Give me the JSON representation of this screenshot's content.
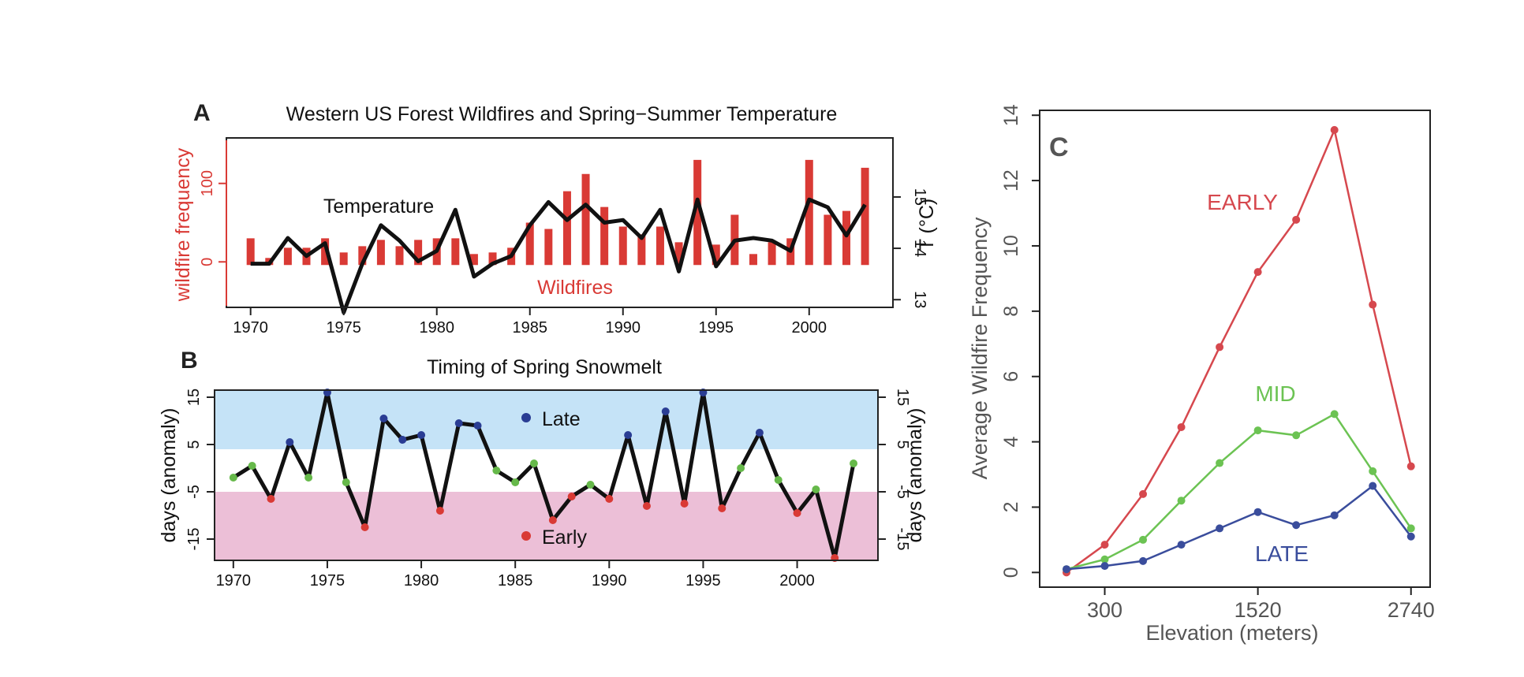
{
  "colors": {
    "red": "#d93a35",
    "black": "#111111",
    "blue": "#2a3d94",
    "green": "#66b94a",
    "late_band": "#c5e3f7",
    "early_band": "#ecbfd7",
    "early_line": "#d6484e",
    "mid_line": "#6cc353",
    "late_line": "#3a4d9c"
  },
  "chart_data": [
    {
      "panel": "A",
      "type": "bar",
      "title": "Western US Forest Wildfires and Spring−Summer Temperature",
      "ylabel": "wildfire frequency",
      "ylabel_right": "T (°C)",
      "ylim": [
        -58,
        158
      ],
      "y_ticks": [
        0,
        100
      ],
      "y_right_ticks": [
        13,
        14,
        15
      ],
      "temperature_ylim": [
        12.85,
        16.15
      ],
      "x_ticks": [
        1970,
        1975,
        1980,
        1985,
        1990,
        1995,
        2000
      ],
      "xlim": [
        1968.7,
        2004.5
      ],
      "annotation_temperature": "Temperature",
      "annotation_wildfires": "Wildfires",
      "years": [
        1970,
        1971,
        1972,
        1973,
        1974,
        1975,
        1976,
        1977,
        1978,
        1979,
        1980,
        1981,
        1982,
        1983,
        1984,
        1985,
        1986,
        1987,
        1988,
        1989,
        1990,
        1991,
        1992,
        1993,
        1994,
        1995,
        1996,
        1997,
        1998,
        1999,
        2000,
        2001,
        2002,
        2003
      ],
      "wildfires": [
        30,
        5,
        18,
        18,
        30,
        12,
        20,
        28,
        20,
        28,
        30,
        30,
        10,
        12,
        18,
        50,
        42,
        90,
        112,
        70,
        45,
        35,
        45,
        25,
        130,
        22,
        60,
        10,
        25,
        30,
        130,
        60,
        65,
        120
      ],
      "temperature": [
        13.7,
        13.7,
        14.2,
        13.85,
        14.1,
        12.75,
        13.7,
        14.45,
        14.15,
        13.75,
        13.95,
        14.75,
        13.45,
        13.7,
        13.85,
        14.45,
        14.9,
        14.55,
        14.85,
        14.5,
        14.55,
        14.2,
        14.75,
        13.55,
        14.95,
        13.65,
        14.15,
        14.2,
        14.15,
        13.95,
        14.95,
        14.8,
        14.25,
        14.85
      ]
    },
    {
      "panel": "B",
      "type": "line",
      "title": "Timing of Spring Snowmelt",
      "ylabel": "days (anomaly)",
      "ylabel_right": "days (anomaly)",
      "ylim": [
        -19.5,
        16.5
      ],
      "y_ticks": [
        -15,
        -5,
        5,
        15
      ],
      "late_threshold": 4,
      "early_threshold": -5,
      "x_ticks": [
        1970,
        1975,
        1980,
        1985,
        1990,
        1995,
        2000
      ],
      "xlim": [
        1969.0,
        2004.3
      ],
      "legend": {
        "late": "Late",
        "early": "Early"
      },
      "years": [
        1970,
        1971,
        1972,
        1973,
        1974,
        1975,
        1976,
        1977,
        1978,
        1979,
        1980,
        1981,
        1982,
        1983,
        1984,
        1985,
        1986,
        1987,
        1988,
        1989,
        1990,
        1991,
        1992,
        1993,
        1994,
        1995,
        1996,
        1997,
        1998,
        1999,
        2000,
        2001,
        2002,
        2003
      ],
      "values": [
        -2,
        0.5,
        -6.5,
        5.5,
        -2,
        16,
        -3,
        -12.5,
        10.5,
        6,
        7,
        -9,
        9.5,
        9,
        -0.5,
        -3,
        1,
        -11,
        -6,
        -3.5,
        -6.5,
        7,
        -8,
        12,
        -7.5,
        16,
        -8.5,
        0,
        7.5,
        -2.5,
        -9.5,
        -4.5,
        -19,
        1
      ]
    },
    {
      "panel": "C",
      "type": "line",
      "title": "",
      "panel_label": "C",
      "xlabel": "Elevation (meters)",
      "ylabel": "Average Wildfire Frequency",
      "ylim": [
        -0.45,
        14.15
      ],
      "y_ticks": [
        0,
        2,
        4,
        6,
        8,
        10,
        12,
        14
      ],
      "xlim": [
        -0.7,
        9.5
      ],
      "x_ticks": [
        1,
        5,
        9
      ],
      "x_tick_labels": [
        "300",
        "1520",
        "2740"
      ],
      "x": [
        0,
        1,
        2,
        3,
        4,
        5,
        6,
        7,
        8,
        9
      ],
      "series": [
        {
          "name": "EARLY",
          "values": [
            0,
            0.85,
            2.4,
            4.45,
            6.9,
            9.2,
            10.8,
            13.55,
            8.2,
            3.25
          ]
        },
        {
          "name": "MID",
          "values": [
            0.1,
            0.4,
            1,
            2.2,
            3.35,
            4.35,
            4.2,
            4.85,
            3.1,
            1.35
          ]
        },
        {
          "name": "LATE",
          "values": [
            0.1,
            0.2,
            0.35,
            0.85,
            1.35,
            1.85,
            1.45,
            1.75,
            2.65,
            1.1
          ]
        }
      ]
    }
  ],
  "panel_labels": {
    "a": "A",
    "b": "B"
  }
}
